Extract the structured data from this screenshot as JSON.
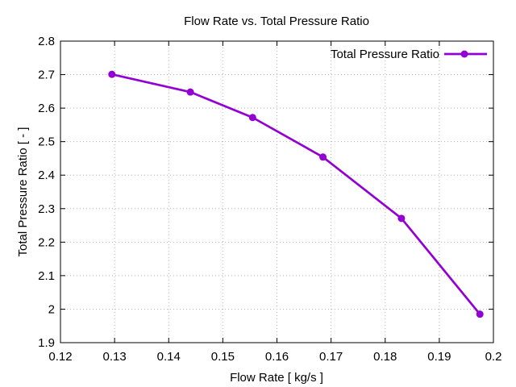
{
  "title": "Flow Rate vs. Total Pressure Ratio",
  "colors": {
    "series_line": "#9400d3",
    "grid": "#b4b4b4",
    "frame": "#000000",
    "text": "#000000",
    "background": "#ffffff"
  },
  "legend": {
    "label": "Total Pressure Ratio"
  },
  "chart_data": {
    "type": "line",
    "title": "Flow Rate vs. Total Pressure Ratio",
    "xlabel": "Flow Rate [ kg/s ]",
    "ylabel": "Total Pressure Ratio [ - ]",
    "xlim": [
      0.12,
      0.2
    ],
    "ylim": [
      1.9,
      2.8
    ],
    "grid": "dotted",
    "legend_position": "top-right-inside",
    "x_ticks": {
      "values": [
        0.12,
        0.13,
        0.14,
        0.15,
        0.16,
        0.17,
        0.18,
        0.19,
        0.2
      ],
      "labels": [
        "0.12",
        "0.13",
        "0.14",
        "0.15",
        "0.16",
        "0.17",
        "0.18",
        "0.19",
        "0.2"
      ]
    },
    "y_ticks": {
      "values": [
        1.9,
        2.0,
        2.1,
        2.2,
        2.3,
        2.4,
        2.5,
        2.6,
        2.7,
        2.8
      ],
      "labels": [
        "1.9",
        "2",
        "2.1",
        "2.2",
        "2.3",
        "2.4",
        "2.5",
        "2.6",
        "2.7",
        "2.8"
      ]
    },
    "series": [
      {
        "name": "Total Pressure Ratio",
        "color": "#9400d3",
        "marker": "filled-circle",
        "x": [
          0.1295,
          0.144,
          0.1555,
          0.1685,
          0.183,
          0.1975
        ],
        "y": [
          2.701,
          2.648,
          2.572,
          2.454,
          2.271,
          1.985
        ]
      }
    ]
  }
}
